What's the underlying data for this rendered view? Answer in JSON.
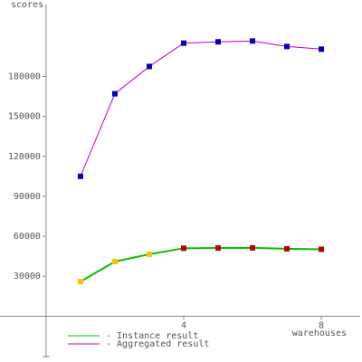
{
  "chart_data": {
    "type": "line",
    "y_label": "scores",
    "x_label": "warehouses",
    "x": [
      1,
      2,
      3,
      4,
      5,
      6,
      7,
      8
    ],
    "series": [
      {
        "name": "- Instance result",
        "color": "#00c000",
        "marker_colors": [
          "#ffc000",
          "#ffc000",
          "#ffc000",
          "#c00000",
          "#c00000",
          "#c00000",
          "#c00000",
          "#c00000"
        ],
        "values": [
          26000,
          41000,
          46500,
          51000,
          51200,
          51300,
          50600,
          50200
        ]
      },
      {
        "name": "- Aggregated result",
        "color": "#c000c0",
        "marker_color": "#0000c0",
        "values": [
          105000,
          167000,
          187500,
          205000,
          206000,
          206600,
          202500,
          200500
        ]
      }
    ],
    "xlim": [
      -1.34,
      9.13
    ],
    "ylim": [
      -31000,
      234000
    ],
    "xticks": [
      4,
      8
    ],
    "yticks": [
      30000,
      60000,
      90000,
      120000,
      150000,
      180000
    ]
  }
}
